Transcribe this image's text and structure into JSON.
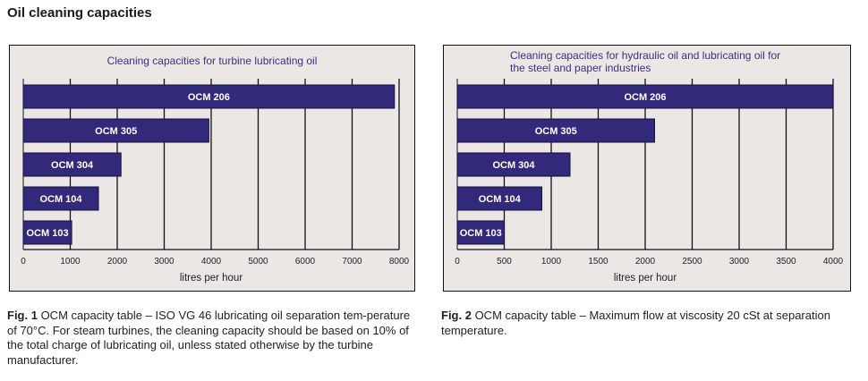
{
  "page": {
    "title": "Oil cleaning capacities"
  },
  "colors": {
    "bar": "#33297a",
    "chart_bg": "#ebe7e4",
    "title": "#3b3080",
    "grid": "#111111"
  },
  "chart_data": [
    {
      "type": "bar",
      "orientation": "horizontal",
      "title": "Cleaning capacities for turbine lubricating oil",
      "xlabel": "litres per hour",
      "ylabel": "",
      "categories": [
        "OCM 206",
        "OCM 305",
        "OCM 304",
        "OCM 104",
        "OCM 103"
      ],
      "values": [
        7900,
        3950,
        2080,
        1600,
        1030
      ],
      "xlim": [
        0,
        8000
      ],
      "xticks": [
        "0",
        "1000",
        "2000",
        "3000",
        "4000",
        "5000",
        "6000",
        "7000",
        "8000"
      ],
      "grid": true
    },
    {
      "type": "bar",
      "orientation": "horizontal",
      "title": "Cleaning capacities for hydraulic oil and lubricating oil for the steel and paper industries",
      "xlabel": "litres per hour",
      "ylabel": "",
      "categories": [
        "OCM 206",
        "OCM 305",
        "OCM 304",
        "OCM 104",
        "OCM 103"
      ],
      "values": [
        4000,
        2100,
        1200,
        900,
        500
      ],
      "xlim": [
        0,
        4000
      ],
      "xticks": [
        "0",
        "500",
        "1000",
        "1500",
        "2000",
        "2500",
        "3000",
        "3500",
        "4000"
      ],
      "grid": true
    }
  ],
  "captions": [
    {
      "label": "Fig. 1",
      "text": " OCM capacity table – ISO VG 46 lubricating oil separation tem-perature of 70°C. For steam turbines, the cleaning capacity should be based on 10% of the total charge of lubricating oil, unless stated otherwise by the turbine manufacturer."
    },
    {
      "label": "Fig. 2",
      "text": " OCM capacity table – Maximum flow at viscosity 20 cSt at separation temperature."
    }
  ]
}
